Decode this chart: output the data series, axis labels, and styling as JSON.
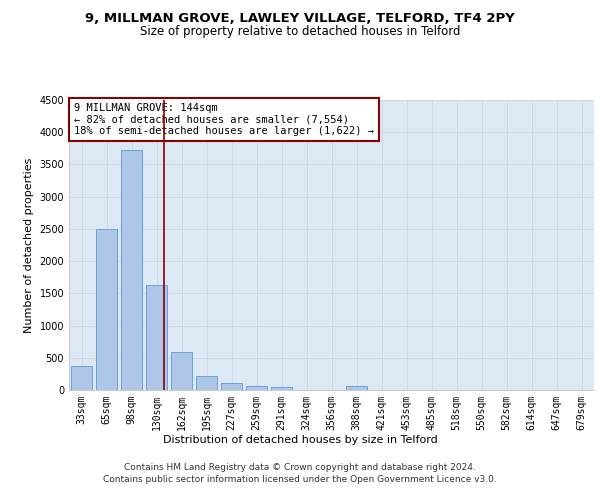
{
  "title_line1": "9, MILLMAN GROVE, LAWLEY VILLAGE, TELFORD, TF4 2PY",
  "title_line2": "Size of property relative to detached houses in Telford",
  "xlabel": "Distribution of detached houses by size in Telford",
  "ylabel": "Number of detached properties",
  "categories": [
    "33sqm",
    "65sqm",
    "98sqm",
    "130sqm",
    "162sqm",
    "195sqm",
    "227sqm",
    "259sqm",
    "291sqm",
    "324sqm",
    "356sqm",
    "388sqm",
    "421sqm",
    "453sqm",
    "485sqm",
    "518sqm",
    "550sqm",
    "582sqm",
    "614sqm",
    "647sqm",
    "679sqm"
  ],
  "values": [
    370,
    2500,
    3720,
    1630,
    590,
    225,
    105,
    65,
    40,
    0,
    0,
    55,
    0,
    0,
    0,
    0,
    0,
    0,
    0,
    0,
    0
  ],
  "bar_color": "#aec6e8",
  "bar_edge_color": "#5b9bd5",
  "vline_color": "#8b0000",
  "annotation_text": "9 MILLMAN GROVE: 144sqm\n← 82% of detached houses are smaller (7,554)\n18% of semi-detached houses are larger (1,622) →",
  "annotation_box_color": "#ffffff",
  "annotation_box_edge_color": "#8b0000",
  "ylim": [
    0,
    4500
  ],
  "yticks": [
    0,
    500,
    1000,
    1500,
    2000,
    2500,
    3000,
    3500,
    4000,
    4500
  ],
  "grid_color": "#d0d8e8",
  "background_color": "#dde8f5",
  "footer_line1": "Contains HM Land Registry data © Crown copyright and database right 2024.",
  "footer_line2": "Contains public sector information licensed under the Open Government Licence v3.0.",
  "title_fontsize": 9.5,
  "subtitle_fontsize": 8.5,
  "axis_label_fontsize": 8,
  "tick_fontsize": 7,
  "annotation_fontsize": 7.5,
  "footer_fontsize": 6.5
}
